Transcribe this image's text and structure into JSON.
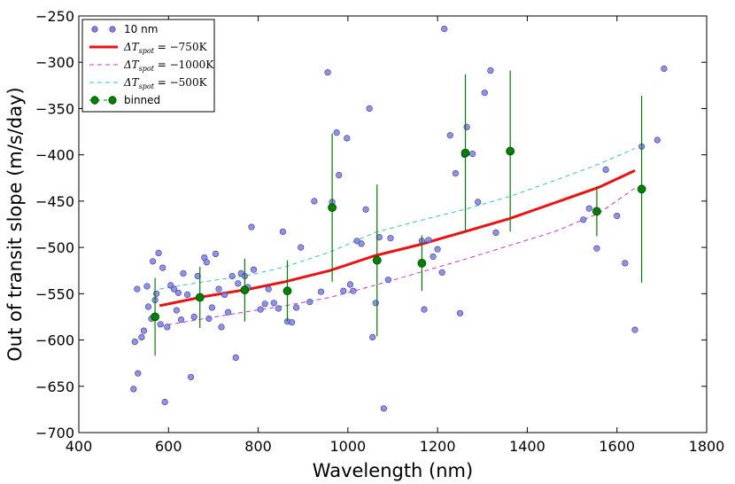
{
  "chart_data": {
    "type": "scatter",
    "xlabel": "Wavelength (nm)",
    "ylabel": "Out of transit slope (m/s/day)",
    "xlim": [
      400,
      1800
    ],
    "ylim": [
      -700,
      -250
    ],
    "xticks": [
      400,
      600,
      800,
      1000,
      1200,
      1400,
      1600,
      1800
    ],
    "yticks": [
      -700,
      -650,
      -600,
      -550,
      -500,
      -450,
      -400,
      -350,
      -300,
      -250
    ],
    "xtick_labels": [
      "400",
      "600",
      "800",
      "1000",
      "1200",
      "1400",
      "1600",
      "1800"
    ],
    "ytick_labels": [
      "−700",
      "−650",
      "−600",
      "−550",
      "−500",
      "−450",
      "−400",
      "−350",
      "−300",
      "−250"
    ],
    "legend_position": "top-left",
    "colors": {
      "points": "#7b7fe8",
      "model_750": "#ee1111",
      "model_1000": "#cc33cc",
      "model_500": "#33c4c8",
      "binned": "#008000"
    },
    "series": [
      {
        "name": "10 nm",
        "kind": "points",
        "color": "#7b7fe8",
        "points": [
          [
            522,
            -653
          ],
          [
            525,
            -602
          ],
          [
            530,
            -545
          ],
          [
            532,
            -636
          ],
          [
            540,
            -597
          ],
          [
            545,
            -590
          ],
          [
            552,
            -542
          ],
          [
            555,
            -564
          ],
          [
            562,
            -577
          ],
          [
            565,
            -515
          ],
          [
            570,
            -557
          ],
          [
            573,
            -550
          ],
          [
            578,
            -506
          ],
          [
            582,
            -583
          ],
          [
            587,
            -522
          ],
          [
            592,
            -667
          ],
          [
            597,
            -586
          ],
          [
            605,
            -541
          ],
          [
            612,
            -545
          ],
          [
            618,
            -568
          ],
          [
            622,
            -549
          ],
          [
            628,
            -578
          ],
          [
            633,
            -528
          ],
          [
            642,
            -551
          ],
          [
            650,
            -640
          ],
          [
            657,
            -575
          ],
          [
            665,
            -531
          ],
          [
            672,
            -553
          ],
          [
            680,
            -511
          ],
          [
            685,
            -516
          ],
          [
            690,
            -577
          ],
          [
            697,
            -565
          ],
          [
            705,
            -507
          ],
          [
            712,
            -545
          ],
          [
            718,
            -586
          ],
          [
            725,
            -551
          ],
          [
            733,
            -570
          ],
          [
            742,
            -531
          ],
          [
            750,
            -619
          ],
          [
            755,
            -539
          ],
          [
            762,
            -528
          ],
          [
            770,
            -531
          ],
          [
            777,
            -543
          ],
          [
            785,
            -478
          ],
          [
            790,
            -524
          ],
          [
            805,
            -567
          ],
          [
            815,
            -561
          ],
          [
            823,
            -545
          ],
          [
            835,
            -560
          ],
          [
            845,
            -566
          ],
          [
            855,
            -483
          ],
          [
            865,
            -580
          ],
          [
            875,
            -581
          ],
          [
            885,
            -565
          ],
          [
            895,
            -500
          ],
          [
            915,
            -559
          ],
          [
            925,
            -450
          ],
          [
            940,
            -548
          ],
          [
            955,
            -311
          ],
          [
            965,
            -451
          ],
          [
            975,
            -376
          ],
          [
            980,
            -422
          ],
          [
            990,
            -547
          ],
          [
            998,
            -382
          ],
          [
            1005,
            -540
          ],
          [
            1012,
            -547
          ],
          [
            1020,
            -493
          ],
          [
            1030,
            -496
          ],
          [
            1040,
            -459
          ],
          [
            1048,
            -350
          ],
          [
            1055,
            -597
          ],
          [
            1062,
            -560
          ],
          [
            1070,
            -489
          ],
          [
            1080,
            -674
          ],
          [
            1090,
            -535
          ],
          [
            1095,
            -490
          ],
          [
            1165,
            -493
          ],
          [
            1170,
            -567
          ],
          [
            1180,
            -492
          ],
          [
            1190,
            -510
          ],
          [
            1200,
            -502
          ],
          [
            1210,
            -527
          ],
          [
            1215,
            -264
          ],
          [
            1228,
            -379
          ],
          [
            1240,
            -420
          ],
          [
            1250,
            -571
          ],
          [
            1260,
            -400
          ],
          [
            1265,
            -370
          ],
          [
            1278,
            -399
          ],
          [
            1290,
            -451
          ],
          [
            1305,
            -333
          ],
          [
            1318,
            -309
          ],
          [
            1330,
            -484
          ],
          [
            1525,
            -470
          ],
          [
            1538,
            -458
          ],
          [
            1555,
            -501
          ],
          [
            1575,
            -416
          ],
          [
            1600,
            -466
          ],
          [
            1618,
            -517
          ],
          [
            1640,
            -589
          ],
          [
            1655,
            -391
          ],
          [
            1690,
            -384
          ],
          [
            1705,
            -307
          ]
        ]
      },
      {
        "name": "ΔT_spot = −750K",
        "kind": "line",
        "color": "#ee1111",
        "x": [
          580,
          680,
          780,
          860,
          960,
          1060,
          1160,
          1260,
          1360,
          1460,
          1560,
          1640
        ],
        "y": [
          -563,
          -553,
          -545,
          -537,
          -525,
          -509,
          -497,
          -483,
          -469,
          -452,
          -435,
          -417
        ]
      },
      {
        "name": "ΔT_spot = −1000K",
        "kind": "dashed",
        "color": "#cc33cc",
        "x": [
          580,
          680,
          780,
          860,
          960,
          1060,
          1160,
          1260,
          1360,
          1460,
          1560,
          1640
        ],
        "y": [
          -585,
          -577,
          -569,
          -563,
          -554,
          -541,
          -527,
          -513,
          -498,
          -483,
          -463,
          -436
        ]
      },
      {
        "name": "ΔT_spot = −500K",
        "kind": "dashed",
        "color": "#33c4c8",
        "x": [
          580,
          680,
          780,
          860,
          960,
          1060,
          1160,
          1260,
          1360,
          1460,
          1560,
          1640
        ],
        "y": [
          -545,
          -537,
          -530,
          -521,
          -505,
          -484,
          -471,
          -459,
          -445,
          -428,
          -410,
          -393
        ]
      },
      {
        "name": "binned",
        "kind": "errorbar",
        "color": "#008000",
        "x": [
          570,
          670,
          770,
          865,
          965,
          1065,
          1165,
          1262,
          1362,
          1555,
          1655
        ],
        "y": [
          -575,
          -554,
          -546,
          -547,
          -457,
          -514,
          -517,
          -398,
          -396,
          -461,
          -437
        ],
        "err": [
          42,
          33,
          34,
          33,
          80,
          82,
          30,
          85,
          87,
          27,
          101
        ]
      }
    ],
    "legend": [
      {
        "kind": "points",
        "label": "10 nm"
      },
      {
        "kind": "line",
        "prefix": "ΔT",
        "sub": "spot",
        "suffix": " = −750K"
      },
      {
        "kind": "dashed",
        "prefix": "ΔT",
        "sub": "spot",
        "suffix": " = −1000K"
      },
      {
        "kind": "dashed",
        "prefix": "ΔT",
        "sub": "spot",
        "suffix": " = −500K"
      },
      {
        "kind": "errorbar",
        "label": "binned"
      }
    ]
  }
}
